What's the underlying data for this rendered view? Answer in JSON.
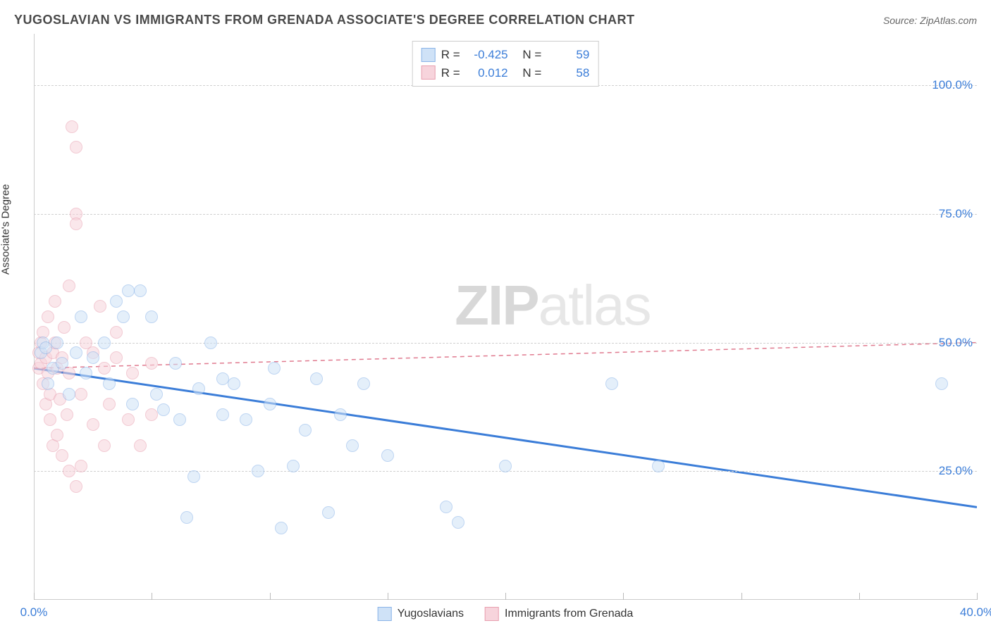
{
  "header": {
    "title": "YUGOSLAVIAN VS IMMIGRANTS FROM GRENADA ASSOCIATE'S DEGREE CORRELATION CHART",
    "source_prefix": "Source: ",
    "source_name": "ZipAtlas.com"
  },
  "ylabel": "Associate's Degree",
  "watermark": {
    "part1": "ZIP",
    "part2": "atlas"
  },
  "chart": {
    "type": "scatter",
    "xlim": [
      0,
      40
    ],
    "ylim": [
      0,
      110
    ],
    "xticks": [
      0,
      5,
      10,
      15,
      20,
      25,
      30,
      35,
      40
    ],
    "xtick_labels": {
      "0": "0.0%",
      "40": "40.0%"
    },
    "yticks": [
      25,
      50,
      75,
      100
    ],
    "ytick_labels": {
      "25": "25.0%",
      "50": "50.0%",
      "75": "75.0%",
      "100": "100.0%"
    },
    "grid_color": "#d0d0d0",
    "axis_color": "#cccccc",
    "background_color": "#ffffff",
    "marker_radius": 9,
    "marker_stroke_width": 1.5,
    "series": [
      {
        "name": "Yugoslavians",
        "fill": "#cfe2f7",
        "stroke": "#8ab4e8",
        "fill_opacity": 0.55,
        "R": "-0.425",
        "N": "59",
        "trend": {
          "y_at_x0": 45,
          "y_at_x40": 18,
          "width": 3,
          "dash": null,
          "color": "#3b7dd8"
        },
        "points": [
          [
            0.3,
            48
          ],
          [
            0.4,
            50
          ],
          [
            0.5,
            49
          ],
          [
            0.6,
            42
          ],
          [
            0.8,
            45
          ],
          [
            1.0,
            50
          ],
          [
            1.2,
            46
          ],
          [
            1.5,
            40
          ],
          [
            1.8,
            48
          ],
          [
            2.0,
            55
          ],
          [
            2.2,
            44
          ],
          [
            2.5,
            47
          ],
          [
            3.0,
            50
          ],
          [
            3.2,
            42
          ],
          [
            3.5,
            58
          ],
          [
            3.8,
            55
          ],
          [
            4.0,
            60
          ],
          [
            4.2,
            38
          ],
          [
            4.5,
            60
          ],
          [
            5.0,
            55
          ],
          [
            5.2,
            40
          ],
          [
            5.5,
            37
          ],
          [
            6.0,
            46
          ],
          [
            6.2,
            35
          ],
          [
            6.5,
            16
          ],
          [
            6.8,
            24
          ],
          [
            7.0,
            41
          ],
          [
            7.5,
            50
          ],
          [
            8.0,
            43
          ],
          [
            8.0,
            36
          ],
          [
            8.5,
            42
          ],
          [
            9.0,
            35
          ],
          [
            9.5,
            25
          ],
          [
            10.0,
            38
          ],
          [
            10.2,
            45
          ],
          [
            10.5,
            14
          ],
          [
            11.0,
            26
          ],
          [
            11.5,
            33
          ],
          [
            12.0,
            43
          ],
          [
            12.5,
            17
          ],
          [
            13.0,
            36
          ],
          [
            13.5,
            30
          ],
          [
            14.0,
            42
          ],
          [
            15.0,
            28
          ],
          [
            17.5,
            18
          ],
          [
            18.0,
            15
          ],
          [
            20.0,
            26
          ],
          [
            24.5,
            42
          ],
          [
            26.5,
            26
          ],
          [
            38.5,
            42
          ]
        ]
      },
      {
        "name": "Immigrants from Grenada",
        "fill": "#f7d4dc",
        "stroke": "#e8a0b0",
        "fill_opacity": 0.55,
        "R": "0.012",
        "N": "58",
        "trend": {
          "y_at_x0": 45,
          "y_at_x40": 50,
          "width": 1.5,
          "dash": "6 5",
          "color": "#e07a8f"
        },
        "points": [
          [
            0.2,
            45
          ],
          [
            0.2,
            48
          ],
          [
            0.3,
            50
          ],
          [
            0.3,
            46
          ],
          [
            0.4,
            52
          ],
          [
            0.4,
            42
          ],
          [
            0.5,
            47
          ],
          [
            0.5,
            38
          ],
          [
            0.6,
            44
          ],
          [
            0.6,
            55
          ],
          [
            0.7,
            40
          ],
          [
            0.7,
            35
          ],
          [
            0.8,
            48
          ],
          [
            0.8,
            30
          ],
          [
            0.9,
            50
          ],
          [
            0.9,
            58
          ],
          [
            1.0,
            45
          ],
          [
            1.0,
            32
          ],
          [
            1.1,
            39
          ],
          [
            1.2,
            47
          ],
          [
            1.2,
            28
          ],
          [
            1.3,
            53
          ],
          [
            1.4,
            36
          ],
          [
            1.5,
            44
          ],
          [
            1.5,
            61
          ],
          [
            1.5,
            25
          ],
          [
            1.6,
            92
          ],
          [
            1.8,
            88
          ],
          [
            1.8,
            75
          ],
          [
            1.8,
            73
          ],
          [
            1.8,
            22
          ],
          [
            2.0,
            26
          ],
          [
            2.0,
            40
          ],
          [
            2.2,
            50
          ],
          [
            2.5,
            34
          ],
          [
            2.5,
            48
          ],
          [
            2.8,
            57
          ],
          [
            3.0,
            45
          ],
          [
            3.0,
            30
          ],
          [
            3.2,
            38
          ],
          [
            3.5,
            47
          ],
          [
            3.5,
            52
          ],
          [
            4.0,
            35
          ],
          [
            4.2,
            44
          ],
          [
            4.5,
            30
          ],
          [
            5.0,
            46
          ],
          [
            5.0,
            36
          ]
        ]
      }
    ]
  },
  "stats_box": {
    "r_label": "R =",
    "n_label": "N ="
  },
  "legend": {
    "label1": "Yugoslavians",
    "label2": "Immigrants from Grenada"
  }
}
